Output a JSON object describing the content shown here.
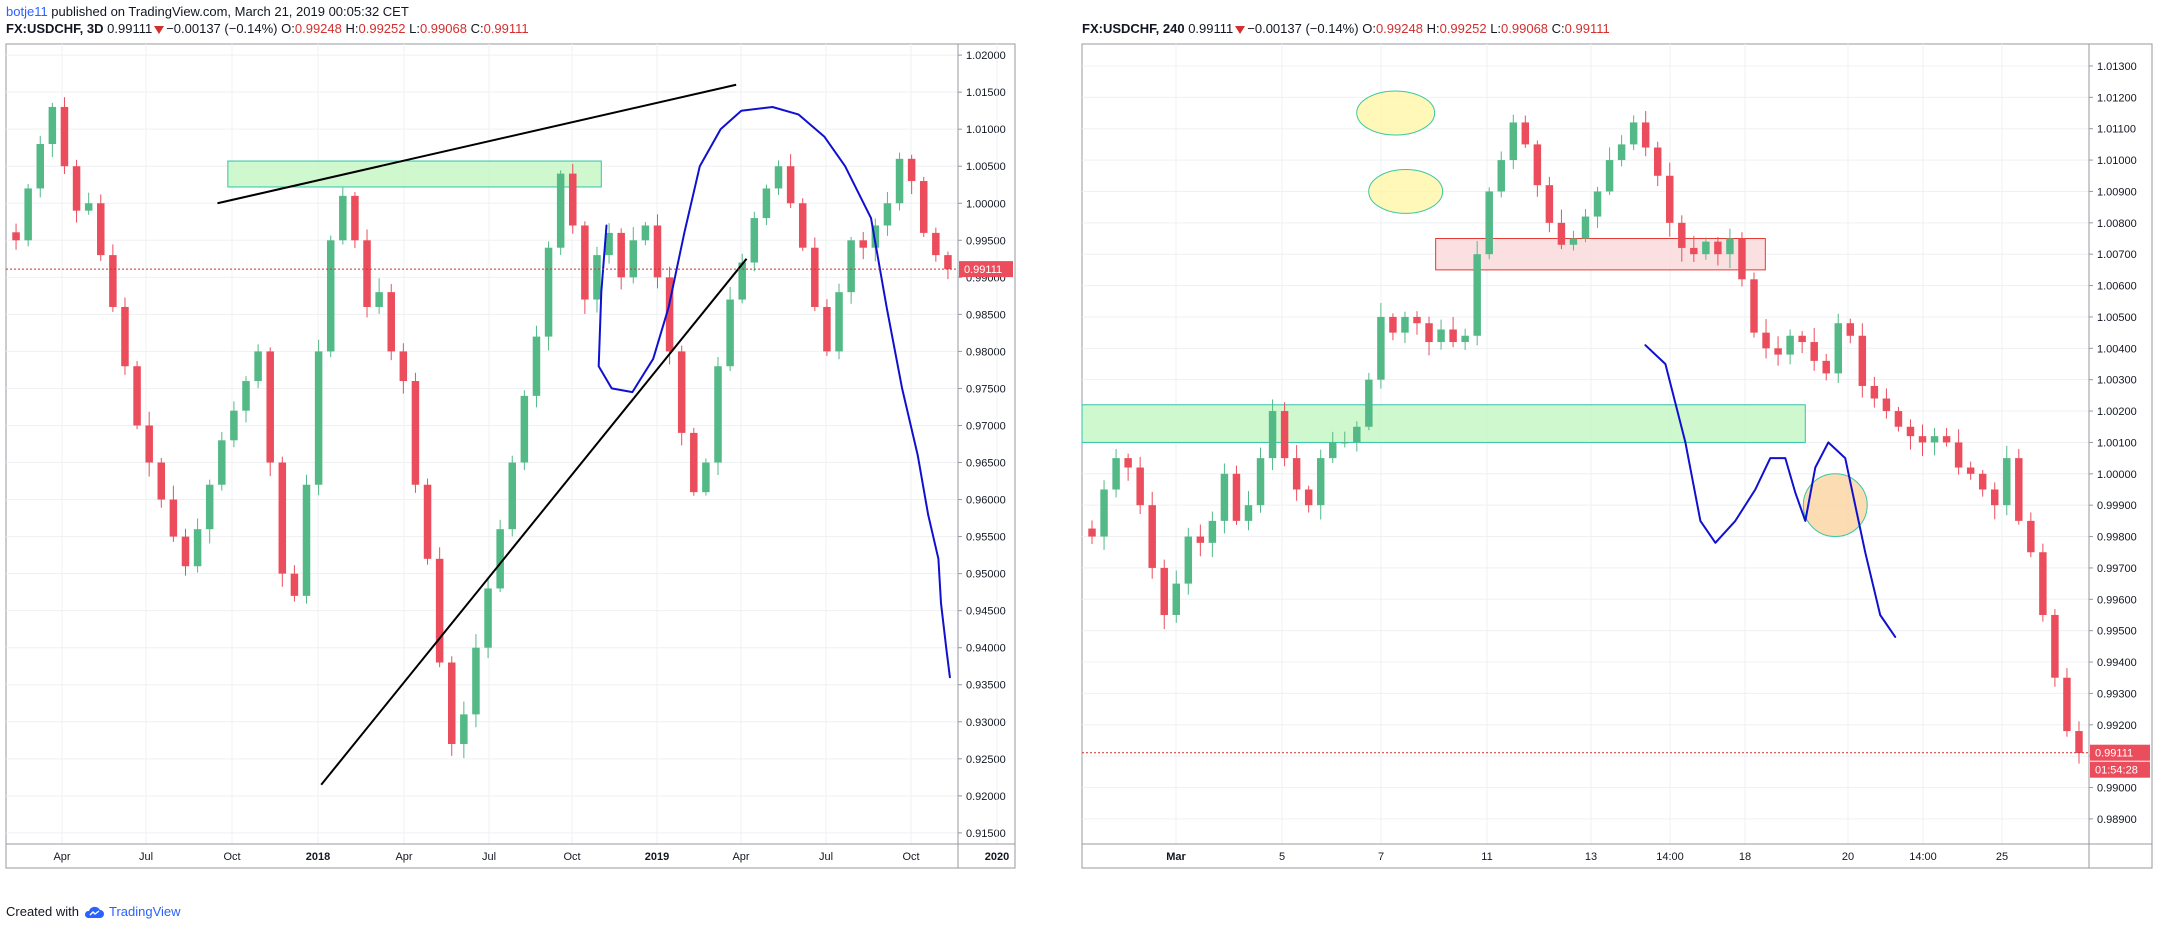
{
  "publish": {
    "username": "botje11",
    "text": " published on TradingView.com, March 21, 2019 00:05:32 CET"
  },
  "footer": {
    "created_with": "Created with",
    "brand": "TradingView"
  },
  "colors": {
    "up": "#53b987",
    "down": "#eb4d5c",
    "grid": "#eef0f3",
    "drawing_blue": "#1010d0",
    "trendline": "#000000",
    "price_line": "#d32f2f",
    "price_label_bg": "#eb4d5c",
    "green_zone_fill": "#c8f7c5",
    "green_zone_stroke": "#2ec4a8",
    "red_zone_fill": "#fadadd",
    "red_zone_stroke": "#e53935",
    "ellipse_yellow": "#fff6a8",
    "ellipse_orange": "#fbd3a0"
  },
  "chart_data": [
    {
      "type": "candlestick",
      "symbol": "FX:USDCHF, 3D",
      "last": "0.99111",
      "change": "−0.00137 (−0.14%)",
      "open_label": "O:",
      "open": "0.99248",
      "high_label": "H:",
      "high": "0.99252",
      "low_label": "L:",
      "low": "0.99068",
      "close_label": "C:",
      "close": "0.99111",
      "price_label": "0.99111",
      "ylim": [
        0.9135,
        1.0215
      ],
      "y_ticks": [
        "1.02000",
        "1.01500",
        "1.01000",
        "1.00500",
        "1.00000",
        "0.99500",
        "0.99000",
        "0.98500",
        "0.98000",
        "0.97500",
        "0.97000",
        "0.96500",
        "0.96000",
        "0.95500",
        "0.95000",
        "0.94500",
        "0.94000",
        "0.93500",
        "0.93000",
        "0.92500",
        "0.92000",
        "0.91500"
      ],
      "x_ticks": [
        "Apr",
        "Jul",
        "Oct",
        "2018",
        "Apr",
        "Jul",
        "Oct",
        "2019",
        "Apr",
        "Jul",
        "Oct",
        "2020"
      ],
      "x_ticks_bold": [
        "2018",
        "2019",
        "2020"
      ],
      "close_path": [
        0.995,
        1.002,
        1.008,
        1.013,
        1.005,
        0.999,
        1.0,
        0.993,
        0.986,
        0.978,
        0.97,
        0.965,
        0.96,
        0.955,
        0.951,
        0.956,
        0.962,
        0.968,
        0.972,
        0.976,
        0.98,
        0.965,
        0.95,
        0.947,
        0.962,
        0.98,
        0.995,
        1.001,
        0.995,
        0.986,
        0.988,
        0.98,
        0.976,
        0.962,
        0.952,
        0.938,
        0.927,
        0.931,
        0.94,
        0.948,
        0.956,
        0.965,
        0.974,
        0.982,
        0.994,
        1.004,
        0.997,
        0.987,
        0.993,
        0.996,
        0.99,
        0.995,
        0.997,
        0.99,
        0.98,
        0.969,
        0.961,
        0.965,
        0.978,
        0.987,
        0.992,
        0.998,
        1.002,
        1.005,
        1.0,
        0.994,
        0.986,
        0.98,
        0.988,
        0.995,
        0.994,
        0.997,
        1.0,
        1.006,
        1.003,
        0.996,
        0.993,
        0.9911
      ],
      "zones": [
        {
          "kind": "rect",
          "fill": "green",
          "t0": 42,
          "t1": 114,
          "p_top": 1.0057,
          "p_bot": 1.0022
        }
      ],
      "trendlines": [
        {
          "t0": 40,
          "p0": 1.0,
          "t1": 140,
          "p1": 1.016
        },
        {
          "t0": 60,
          "p0": 0.9215,
          "t1": 142,
          "p1": 0.9925
        }
      ],
      "drawing": [
        [
          115,
          0.997
        ],
        [
          114,
          0.988
        ],
        [
          113.5,
          0.978
        ],
        [
          116,
          0.975
        ],
        [
          120,
          0.9745
        ],
        [
          124,
          0.979
        ],
        [
          127,
          0.986
        ],
        [
          130,
          0.996
        ],
        [
          133,
          1.005
        ],
        [
          137,
          1.01
        ],
        [
          141,
          1.0125
        ],
        [
          147,
          1.013
        ],
        [
          152,
          1.012
        ],
        [
          157,
          1.009
        ],
        [
          161,
          1.005
        ],
        [
          166,
          0.998
        ],
        [
          169,
          0.986
        ],
        [
          172,
          0.975
        ],
        [
          175,
          0.966
        ],
        [
          177,
          0.958
        ],
        [
          179,
          0.952
        ],
        [
          179.5,
          0.946
        ],
        [
          180.5,
          0.94
        ],
        [
          181.2,
          0.936
        ]
      ],
      "t_max": 182
    },
    {
      "type": "candlestick",
      "symbol": "FX:USDCHF, 240",
      "last": "0.99111",
      "change": "−0.00137 (−0.14%)",
      "open_label": "O:",
      "open": "0.99248",
      "high_label": "H:",
      "high": "0.99252",
      "low_label": "L:",
      "low": "0.99068",
      "close_label": "C:",
      "close": "0.99111",
      "price_label": "0.99111",
      "countdown": "01:54:28",
      "ylim": [
        0.9882,
        1.0137
      ],
      "y_ticks": [
        "1.01300",
        "1.01200",
        "1.01100",
        "1.01000",
        "1.00900",
        "1.00800",
        "1.00700",
        "1.00600",
        "1.00500",
        "1.00400",
        "1.00300",
        "1.00200",
        "1.00100",
        "1.00000",
        "0.99900",
        "0.99800",
        "0.99700",
        "0.99600",
        "0.99500",
        "0.99400",
        "0.99300",
        "0.99200",
        "0.99100",
        "0.99000",
        "0.98900"
      ],
      "x_ticks": [
        "Mar",
        "5",
        "7",
        "11",
        "13",
        "14:00",
        "18",
        "20",
        "14:00",
        "25"
      ],
      "x_ticks_bold": [
        "Mar"
      ],
      "close_path": [
        0.998,
        0.9995,
        1.0005,
        1.0002,
        0.999,
        0.997,
        0.9955,
        0.9965,
        0.998,
        0.9978,
        0.9985,
        1.0,
        0.9985,
        0.999,
        1.0005,
        1.002,
        1.0005,
        0.9995,
        0.999,
        1.0005,
        1.001,
        1.001,
        1.0015,
        1.003,
        1.005,
        1.0045,
        1.005,
        1.0048,
        1.0042,
        1.0046,
        1.0042,
        1.0044,
        1.007,
        1.009,
        1.01,
        1.0112,
        1.0105,
        1.0092,
        1.008,
        1.0073,
        1.0075,
        1.0082,
        1.009,
        1.01,
        1.0105,
        1.0112,
        1.0104,
        1.0095,
        1.008,
        1.0072,
        1.007,
        1.0074,
        1.007,
        1.0075,
        1.0062,
        1.0045,
        1.004,
        1.0038,
        1.0044,
        1.0042,
        1.0036,
        1.0032,
        1.0048,
        1.0044,
        1.0028,
        1.0024,
        1.002,
        1.0015,
        1.0012,
        1.001,
        1.0012,
        1.001,
        1.0002,
        1.0,
        0.9995,
        0.999,
        1.0005,
        0.9985,
        0.9975,
        0.9955,
        0.9935,
        0.9918,
        0.9911
      ],
      "zones": [
        {
          "kind": "rect",
          "fill": "green",
          "t0": -1,
          "t1": 72,
          "p_top": 1.0022,
          "p_bot": 1.001
        },
        {
          "kind": "rect",
          "fill": "red",
          "t0": 35,
          "t1": 68,
          "p_top": 1.0075,
          "p_bot": 1.0065
        }
      ],
      "ellipses": [
        {
          "fill": "yellow",
          "t": 32,
          "p": 1.009,
          "rt": 3.7,
          "rp": 0.0007
        },
        {
          "fill": "yellow",
          "t": 31,
          "p": 1.0115,
          "rt": 3.9,
          "rp": 0.0007
        },
        {
          "fill": "orange",
          "t": 75,
          "p": 0.999,
          "rt": 3.2,
          "rp": 0.001
        }
      ],
      "drawing": [
        [
          56,
          1.0041
        ],
        [
          58,
          1.0035
        ],
        [
          60,
          1.001
        ],
        [
          61.5,
          0.9985
        ],
        [
          63,
          0.9978
        ],
        [
          65,
          0.9985
        ],
        [
          67,
          0.9995
        ],
        [
          68.5,
          1.0005
        ],
        [
          70,
          1.0005
        ],
        [
          71,
          0.9994
        ],
        [
          72,
          0.9985
        ],
        [
          73,
          1.0002
        ],
        [
          74.3,
          1.001
        ],
        [
          76,
          1.0005
        ],
        [
          78,
          0.9975
        ],
        [
          79.5,
          0.9955
        ],
        [
          81,
          0.9948
        ]
      ],
      "t_max": 100
    }
  ]
}
